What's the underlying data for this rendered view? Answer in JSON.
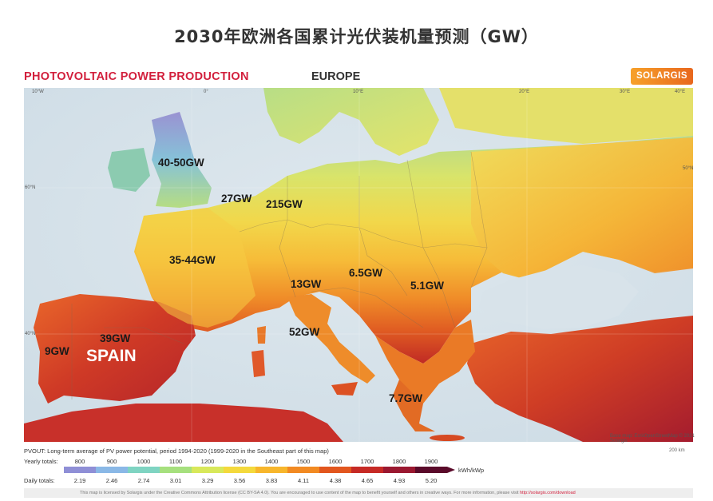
{
  "headline": "2030年欧洲各国累计光伏装机量预测（GW）",
  "map_title": "PHOTOVOLTAIC POWER PRODUCTION",
  "region": "EUROPE",
  "brand": "SOLARGIS",
  "country_labels": {
    "uk": "40-50GW",
    "netherlands": "27GW",
    "germany": "215GW",
    "france": "35-44GW",
    "austria": "13GW",
    "hungary": "6.5GW",
    "romania": "5.1GW",
    "italy": "52GW",
    "spain": "39GW",
    "portugal": "9GW",
    "greece": "7.7GW"
  },
  "spain_name": "SPAIN",
  "lon_labels": [
    "10°W",
    "0°",
    "10°E",
    "20°E",
    "30°E",
    "40°E"
  ],
  "lat_labels": [
    "60°N",
    "50°N",
    "40°N"
  ],
  "map_credit": "Base map: Esri/OpenStreetMap © 2021 Solargis",
  "legend": {
    "description": "PVOUT: Long-term average of PV power potential, period 1994-2020 (1999-2020 in the Southeast part of this map)",
    "scale_note": "200 km",
    "yearly_label": "Yearly totals:",
    "yearly_values": [
      "800",
      "900",
      "1000",
      "1100",
      "1200",
      "1300",
      "1400",
      "1500",
      "1600",
      "1700",
      "1800",
      "1900"
    ],
    "daily_label": "Daily totals:",
    "daily_values": [
      "2.19",
      "2.46",
      "2.74",
      "3.01",
      "3.29",
      "3.56",
      "3.83",
      "4.11",
      "4.38",
      "4.65",
      "4.93",
      "5.20"
    ],
    "unit": "kWh/kWp",
    "colors": [
      "#8f8fd6",
      "#8ab8e6",
      "#7fd4c2",
      "#a6e07e",
      "#d8e85a",
      "#f4d93c",
      "#f7b62c",
      "#f28a22",
      "#e2561e",
      "#c62a25",
      "#9a1830",
      "#5a0a2a"
    ]
  },
  "license_text": "This map is licensed by Solargis under the Creative Commons Attribution license (CC BY-SA 4.0). You are encouraged to use content of the map to benefit yourself and others in creative ways. For more information, please visit",
  "license_link": "http://solargis.com/download"
}
